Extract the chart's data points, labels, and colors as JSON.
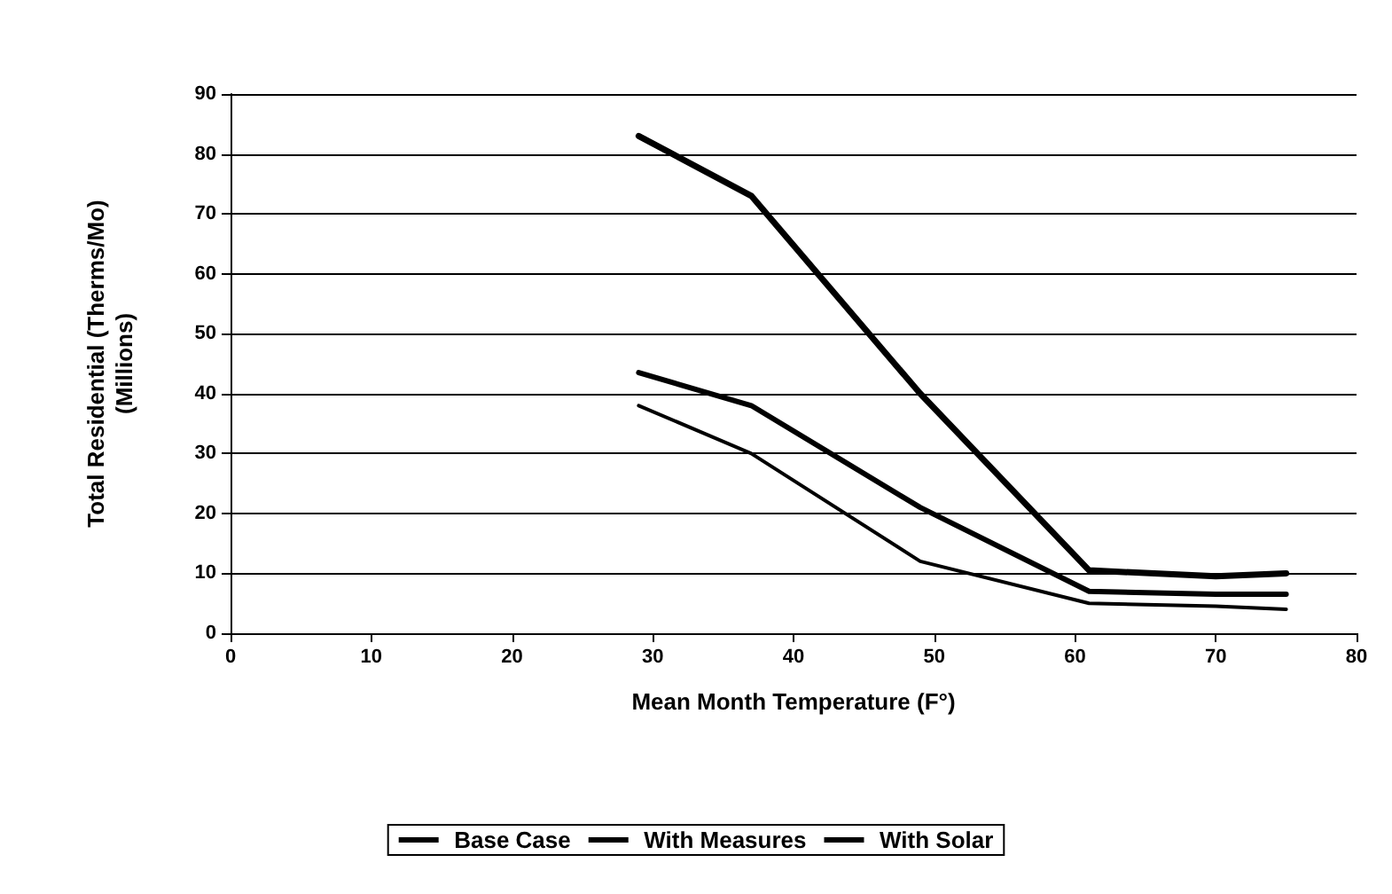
{
  "chart_data": {
    "type": "line",
    "xlabel": "Mean Month Temperature (F°)",
    "ylabel": "Total Residential (Therms/Mo)\n(Millions)",
    "x": [
      29,
      37,
      49,
      61,
      70,
      75
    ],
    "series": [
      {
        "name": "Base Case",
        "color": "#000000",
        "values": [
          83,
          73,
          40,
          10.5,
          9.5,
          10
        ]
      },
      {
        "name": "With Measures",
        "color": "#000000",
        "values": [
          43.5,
          38,
          21,
          7,
          6.5,
          6.5
        ]
      },
      {
        "name": "With Solar",
        "color": "#000000",
        "values": [
          38,
          30,
          12,
          5,
          4.5,
          4
        ]
      }
    ],
    "xlim": [
      0,
      80
    ],
    "xticks": [
      0,
      10,
      20,
      30,
      40,
      50,
      60,
      70,
      80
    ],
    "ylim": [
      0,
      90
    ],
    "yticks": [
      0,
      10,
      20,
      30,
      40,
      50,
      60,
      70,
      80,
      90
    ],
    "grid": "y",
    "legend": "bottom",
    "marker": "none",
    "line_style": "solid"
  }
}
